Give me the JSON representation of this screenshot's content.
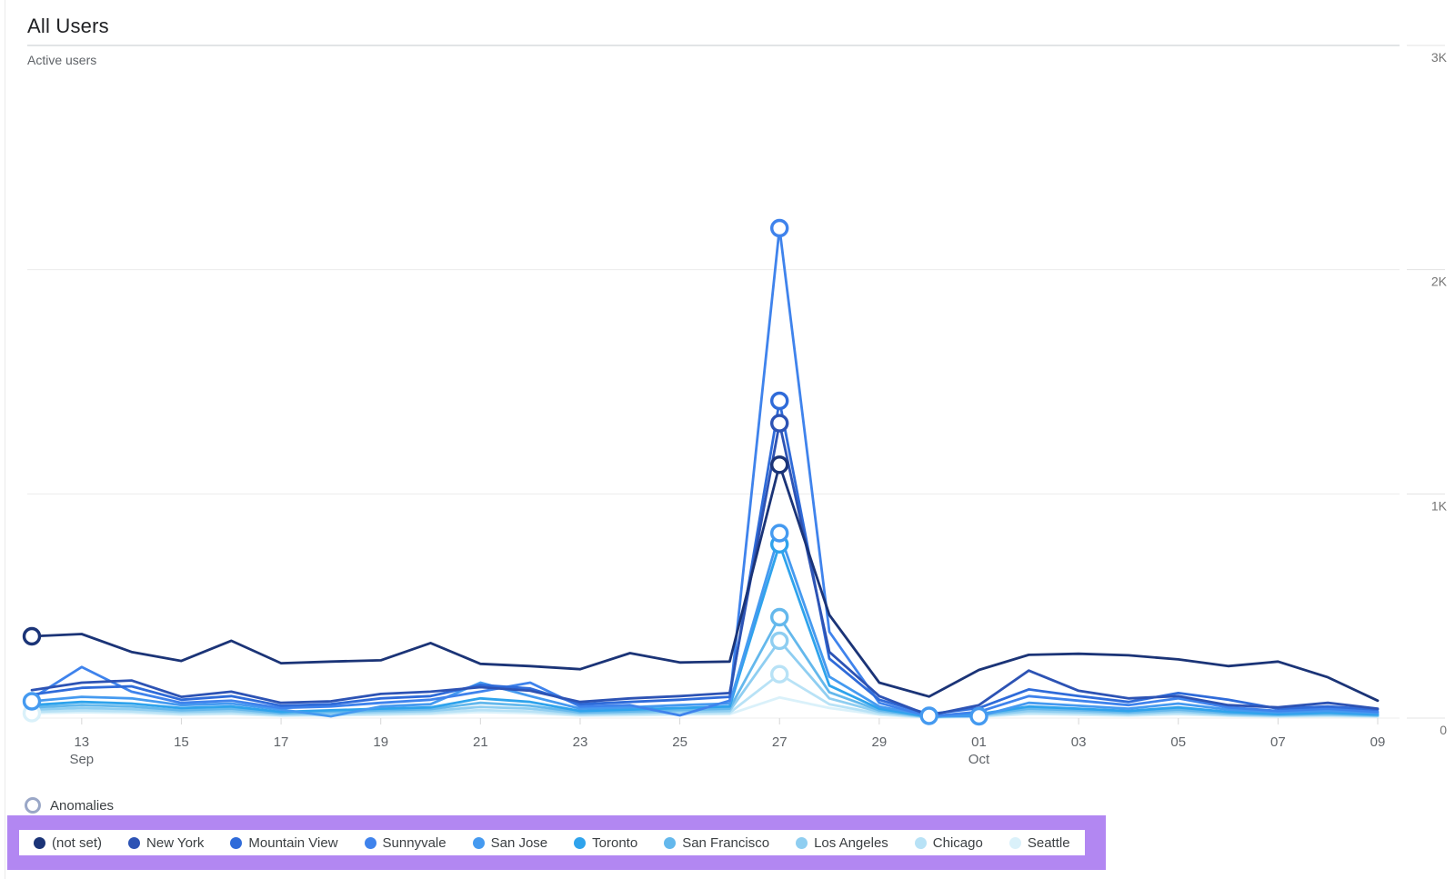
{
  "header": {
    "title": "All Users",
    "subtitle": "Active users"
  },
  "anomalies_legend": {
    "label": "Anomalies",
    "ring_color": "#9AA7C7"
  },
  "highlight": {
    "color": "#B287F2"
  },
  "chart_data": {
    "type": "line",
    "title": "All Users",
    "ylabel": "Active users",
    "grid": true,
    "legend_position": "bottom",
    "ylim": [
      0,
      3000
    ],
    "y_ticks": [
      {
        "value": 3000,
        "label": "3K"
      },
      {
        "value": 2000,
        "label": "2K"
      },
      {
        "value": 1000,
        "label": "1K"
      },
      {
        "value": 0,
        "label": "0"
      }
    ],
    "x": [
      "Sep 12",
      "Sep 13",
      "Sep 14",
      "Sep 15",
      "Sep 16",
      "Sep 17",
      "Sep 18",
      "Sep 19",
      "Sep 20",
      "Sep 21",
      "Sep 22",
      "Sep 23",
      "Sep 24",
      "Sep 25",
      "Sep 26",
      "Sep 27",
      "Sep 28",
      "Sep 29",
      "Sep 30",
      "Oct 1",
      "Oct 2",
      "Oct 3",
      "Oct 4",
      "Oct 5",
      "Oct 6",
      "Oct 7",
      "Oct 8",
      "Oct 9"
    ],
    "x_tick_labels": [
      {
        "index": 1,
        "label": "13",
        "sub": "Sep"
      },
      {
        "index": 3,
        "label": "15"
      },
      {
        "index": 5,
        "label": "17"
      },
      {
        "index": 7,
        "label": "19"
      },
      {
        "index": 9,
        "label": "21"
      },
      {
        "index": 11,
        "label": "23"
      },
      {
        "index": 13,
        "label": "25"
      },
      {
        "index": 15,
        "label": "27"
      },
      {
        "index": 17,
        "label": "29"
      },
      {
        "index": 19,
        "label": "01",
        "sub": "Oct"
      },
      {
        "index": 21,
        "label": "03"
      },
      {
        "index": 23,
        "label": "05"
      },
      {
        "index": 25,
        "label": "07"
      },
      {
        "index": 27,
        "label": "09"
      }
    ],
    "series": [
      {
        "name": "(not set)",
        "color": "#1B3477",
        "anomalies": [
          0,
          15
        ],
        "values": [
          365,
          375,
          295,
          255,
          345,
          245,
          252,
          258,
          335,
          242,
          232,
          218,
          290,
          248,
          252,
          1130,
          460,
          158,
          96,
          215,
          282,
          287,
          280,
          262,
          232,
          252,
          182,
          78
        ]
      },
      {
        "name": "New York",
        "color": "#2D53B4",
        "anomalies": [
          15
        ],
        "values": [
          125,
          158,
          168,
          95,
          118,
          68,
          75,
          108,
          118,
          138,
          122,
          72,
          88,
          98,
          112,
          1315,
          295,
          98,
          12,
          58,
          212,
          122,
          88,
          98,
          58,
          48,
          68,
          42
        ]
      },
      {
        "name": "Mountain View",
        "color": "#2F6BD9",
        "anomalies": [
          15
        ],
        "values": [
          105,
          135,
          142,
          82,
          98,
          55,
          62,
          88,
          98,
          148,
          132,
          62,
          72,
          82,
          95,
          1415,
          265,
          82,
          18,
          45,
          128,
          98,
          72,
          112,
          82,
          42,
          52,
          38
        ]
      },
      {
        "name": "Sunnyvale",
        "color": "#3F83EC",
        "anomalies": [
          15
        ],
        "values": [
          88,
          228,
          118,
          68,
          78,
          45,
          52,
          68,
          82,
          118,
          158,
          52,
          58,
          12,
          78,
          2185,
          385,
          68,
          8,
          28,
          98,
          78,
          58,
          88,
          48,
          32,
          42,
          28
        ]
      },
      {
        "name": "San Jose",
        "color": "#459AF0",
        "anomalies": [
          0,
          15,
          18,
          19
        ],
        "values": [
          75,
          95,
          88,
          58,
          65,
          38,
          8,
          52,
          62,
          158,
          98,
          42,
          48,
          58,
          65,
          825,
          185,
          52,
          10,
          8,
          68,
          55,
          42,
          65,
          38,
          25,
          32,
          22
        ]
      },
      {
        "name": "Toronto",
        "color": "#2FA3EC",
        "anomalies": [
          15
        ],
        "values": [
          58,
          72,
          65,
          45,
          52,
          28,
          35,
          42,
          48,
          88,
          72,
          32,
          38,
          45,
          52,
          775,
          145,
          42,
          6,
          18,
          52,
          42,
          32,
          48,
          28,
          18,
          25,
          16
        ]
      },
      {
        "name": "San Francisco",
        "color": "#64B8EC",
        "anomalies": [
          15
        ],
        "values": [
          48,
          58,
          52,
          35,
          42,
          22,
          28,
          35,
          40,
          68,
          55,
          26,
          30,
          36,
          42,
          450,
          115,
          35,
          5,
          14,
          42,
          35,
          26,
          38,
          22,
          15,
          20,
          13
        ]
      },
      {
        "name": "Los Angeles",
        "color": "#8FCEF1",
        "anomalies": [
          15
        ],
        "values": [
          38,
          45,
          40,
          28,
          32,
          18,
          22,
          28,
          32,
          50,
          42,
          20,
          24,
          28,
          32,
          345,
          88,
          28,
          4,
          11,
          32,
          27,
          20,
          30,
          17,
          12,
          16,
          10
        ]
      },
      {
        "name": "Chicago",
        "color": "#B8E2F6",
        "anomalies": [
          15
        ],
        "values": [
          28,
          34,
          30,
          20,
          24,
          13,
          16,
          20,
          24,
          36,
          30,
          15,
          18,
          21,
          24,
          196,
          62,
          20,
          3,
          8,
          24,
          20,
          15,
          22,
          13,
          9,
          12,
          8
        ]
      },
      {
        "name": "Seattle",
        "color": "#DAF1FA",
        "anomalies": [
          0
        ],
        "values": [
          22,
          26,
          23,
          15,
          18,
          10,
          12,
          15,
          18,
          27,
          22,
          11,
          13,
          16,
          18,
          92,
          45,
          15,
          2,
          6,
          18,
          15,
          11,
          17,
          10,
          7,
          9,
          6
        ]
      }
    ]
  }
}
